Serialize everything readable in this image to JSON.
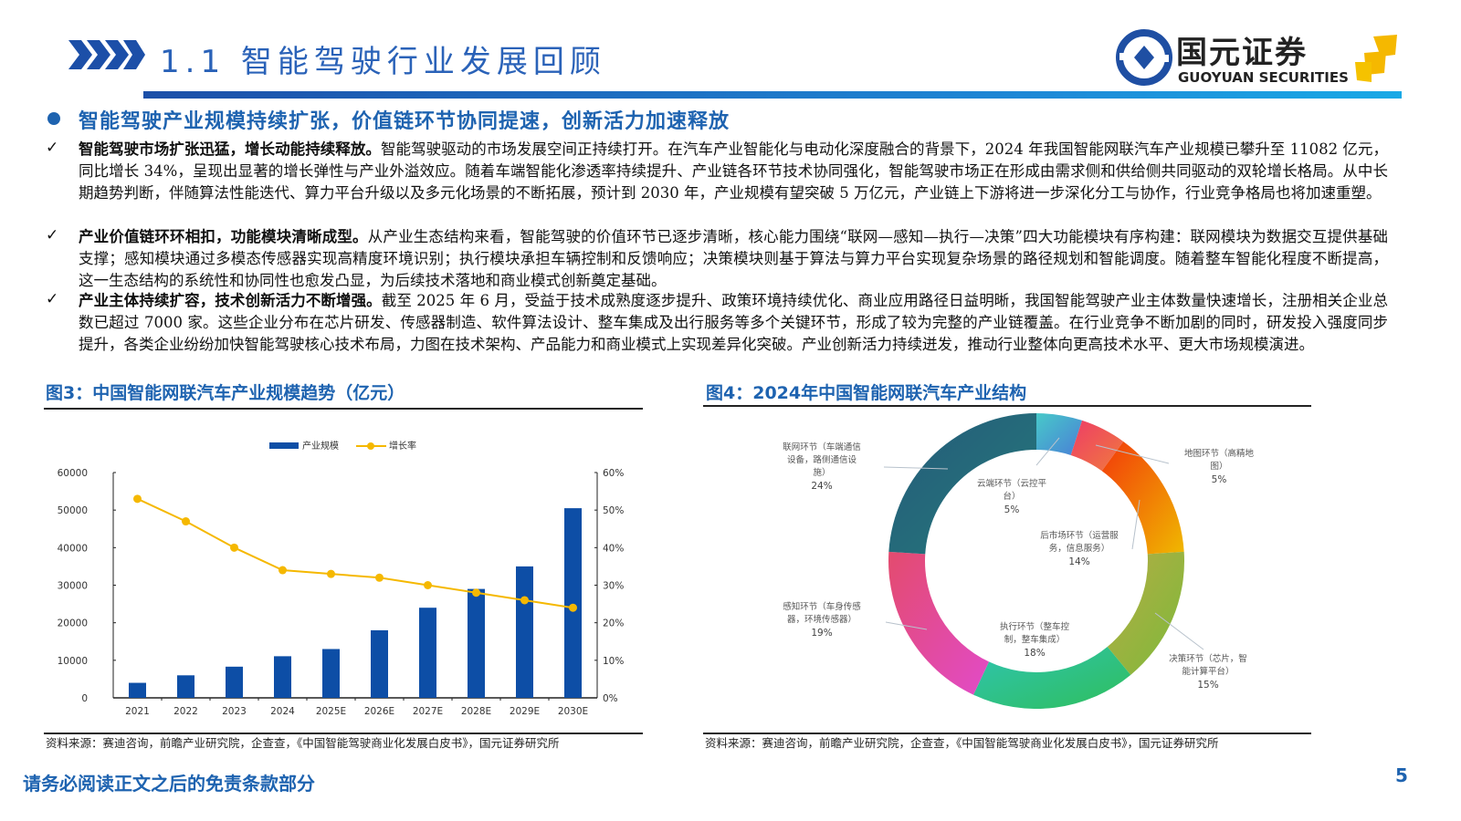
{
  "header": {
    "section_title": "1.1 智能驾驶行业发展回顾",
    "logo_cn": "国元证券",
    "logo_en": "GUOYUAN SECURITIES",
    "accent": "#1e63b0"
  },
  "headline": "智能驾驶产业规模持续扩张，价值链环节协同提速，创新活力加速释放",
  "paragraphs": [
    {
      "bold": "智能驾驶市场扩张迅猛，增长动能持续释放。",
      "text": "智能驾驶驱动的市场发展空间正持续打开。在汽车产业智能化与电动化深度融合的背景下，2024 年我国智能网联汽车产业规模已攀升至 11082 亿元，同比增长 34%，呈现出显著的增长弹性与产业外溢效应。随着车端智能化渗透率持续提升、产业链各环节技术协同强化，智能驾驶市场正在形成由需求侧和供给侧共同驱动的双轮增长格局。从中长期趋势判断，伴随算法性能迭代、算力平台升级以及多元化场景的不断拓展，预计到 2030 年，产业规模有望突破 5 万亿元，产业链上下游将进一步深化分工与协作，行业竞争格局也将加速重塑。"
    },
    {
      "bold": "产业价值链环环相扣，功能模块清晰成型。",
      "text": "从产业生态结构来看，智能驾驶的价值环节已逐步清晰，核心能力围绕“联网—感知—执行—决策”四大功能模块有序构建：联网模块为数据交互提供基础支撑；感知模块通过多模态传感器实现高精度环境识别；执行模块承担车辆控制和反馈响应；决策模块则基于算法与算力平台实现复杂场景的路径规划和智能调度。随着整车智能化程度不断提高，这一生态结构的系统性和协同性也愈发凸显，为后续技术落地和商业模式创新奠定基础。"
    },
    {
      "bold": "产业主体持续扩容，技术创新活力不断增强。",
      "text": "截至 2025 年 6 月，受益于技术成熟度逐步提升、政策环境持续优化、商业应用路径日益明晰，我国智能驾驶产业主体数量快速增长，注册相关企业总数已超过 7000 家。这些企业分布在芯片研发、传感器制造、软件算法设计、整车集成及出行服务等多个关键环节，形成了较为完整的产业链覆盖。在行业竞争不断加剧的同时，研发投入强度同步提升，各类企业纷纷加快智能驾驶核心技术布局，力图在技术架构、产品能力和商业模式上实现差异化突破。产业创新活力持续迸发，推动行业整体向更高技术水平、更大市场规模演进。"
    }
  ],
  "figures": {
    "fig3_title": "图3：中国智能网联汽车产业规模趋势（亿元）",
    "fig4_title": "图4：2024年中国智能网联汽车产业结构",
    "fig3_source": "资料来源：赛迪咨询，前瞻产业研究院，企查查，《中国智能驾驶商业化发展白皮书》，国元证券研究所",
    "fig4_source": "资料来源：赛迪咨询，前瞻产业研究院，企查查，《中国智能驾驶商业化发展白皮书》，国元证券研究所"
  },
  "chart_data": [
    {
      "type": "bar",
      "categories": [
        "2021",
        "2022",
        "2023",
        "2024",
        "2025E",
        "2026E",
        "2027E",
        "2028E",
        "2029E",
        "2030E"
      ],
      "series": [
        {
          "name": "产业规模",
          "type": "bar",
          "axis": "left",
          "color": "#0d4ea6",
          "values": [
            4000,
            6000,
            8300,
            11082,
            13000,
            18000,
            24000,
            29000,
            35000,
            50500
          ]
        },
        {
          "name": "增长率",
          "type": "line",
          "axis": "right",
          "color": "#f5b800",
          "values": [
            53,
            47,
            40,
            34,
            33,
            32,
            30,
            28,
            26,
            24
          ]
        }
      ],
      "ylim": [
        0,
        60000
      ],
      "yticks": [
        "0",
        "10000",
        "20000",
        "30000",
        "40000",
        "50000",
        "60000"
      ],
      "y2lim": [
        0,
        60
      ],
      "y2ticks": [
        "0%",
        "10%",
        "20%",
        "30%",
        "40%",
        "50%",
        "60%"
      ],
      "legend": "top",
      "grid": false
    },
    {
      "type": "pie",
      "donut": true,
      "slices": [
        {
          "label": "云端环节（云控平台）",
          "value": 5,
          "pct": "5%",
          "colors": [
            "#47c9c9",
            "#4a7fd6"
          ]
        },
        {
          "label": "地图环节（高精地图）",
          "value": 5,
          "pct": "5%",
          "colors": [
            "#ee3d66",
            "#f07a3e"
          ]
        },
        {
          "label": "后市场环节（运营服务，信息服务）",
          "value": 14,
          "pct": "14%",
          "colors": [
            "#f23a0a",
            "#f0b800"
          ]
        },
        {
          "label": "决策环节（芯片，智能计算平台）",
          "value": 15,
          "pct": "15%",
          "colors": [
            "#b5ac45",
            "#7cba3a"
          ]
        },
        {
          "label": "执行环节（整车控制，整车集成）",
          "value": 18,
          "pct": "18%",
          "colors": [
            "#2fc4b0",
            "#2fbe5c"
          ]
        },
        {
          "label": "感知环节（车身传感器，环境传感器）",
          "value": 19,
          "pct": "19%",
          "colors": [
            "#e34b6e",
            "#e24bc8"
          ]
        },
        {
          "label": "联网环节（车端通信设备，路侧通信设施）",
          "value": 24,
          "pct": "24%",
          "colors": [
            "#245a7a",
            "#267a7a"
          ]
        }
      ],
      "legend": "none"
    }
  ],
  "footer": {
    "disclaimer": "请务必阅读正文之后的免责条款部分",
    "page": "5"
  }
}
